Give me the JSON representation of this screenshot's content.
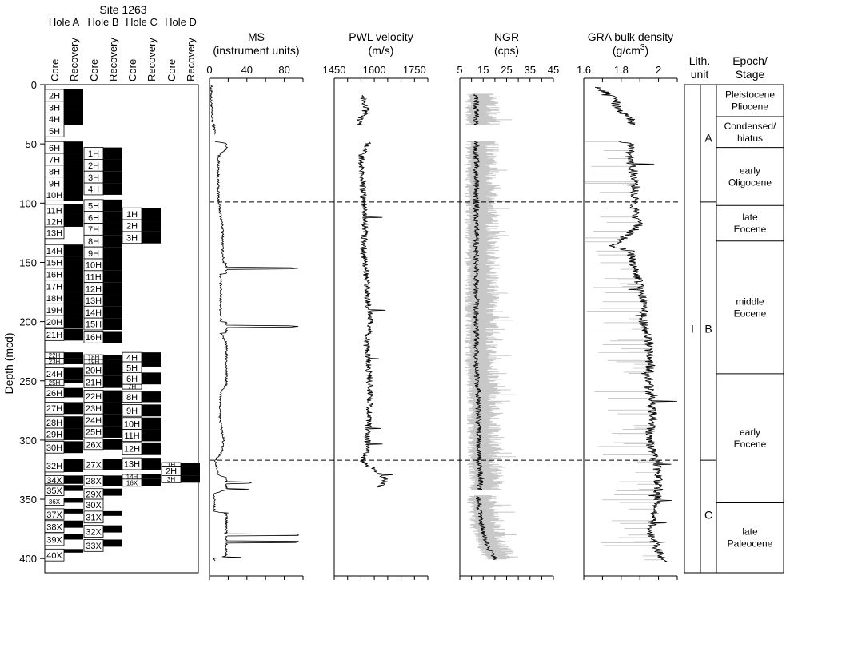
{
  "title": "Site 1263",
  "depth_axis": {
    "label": "Depth (mcd)",
    "ticks": [
      0,
      50,
      100,
      150,
      200,
      250,
      300,
      350,
      400
    ],
    "range": [
      0,
      412
    ]
  },
  "holes": [
    {
      "name": "Hole A",
      "cores": [
        {
          "id": "2H",
          "top": 4,
          "bot": 14,
          "rec": 10
        },
        {
          "id": "3H",
          "top": 14,
          "bot": 24,
          "rec": 10
        },
        {
          "id": "4H",
          "top": 24,
          "bot": 34,
          "rec": 10
        },
        {
          "id": "5H",
          "top": 34,
          "bot": 44,
          "rec": 0
        },
        {
          "id": "6H",
          "top": 48,
          "bot": 58,
          "rec": 10
        },
        {
          "id": "7H",
          "top": 58,
          "bot": 68,
          "rec": 10
        },
        {
          "id": "8H",
          "top": 68,
          "bot": 78,
          "rec": 10
        },
        {
          "id": "9H",
          "top": 78,
          "bot": 88,
          "rec": 10
        },
        {
          "id": "10H",
          "top": 88,
          "bot": 98,
          "rec": 10
        },
        {
          "id": "11H",
          "top": 101,
          "bot": 111,
          "rec": 10
        },
        {
          "id": "12H",
          "top": 111,
          "bot": 120,
          "rec": 9
        },
        {
          "id": "13H",
          "top": 120,
          "bot": 130,
          "rec": 0
        },
        {
          "id": "14H",
          "top": 135,
          "bot": 145,
          "rec": 10
        },
        {
          "id": "15H",
          "top": 145,
          "bot": 155,
          "rec": 10
        },
        {
          "id": "16H",
          "top": 155,
          "bot": 165,
          "rec": 10
        },
        {
          "id": "17H",
          "top": 165,
          "bot": 175,
          "rec": 10
        },
        {
          "id": "18H",
          "top": 175,
          "bot": 185,
          "rec": 10
        },
        {
          "id": "19H",
          "top": 185,
          "bot": 195,
          "rec": 10
        },
        {
          "id": "20H",
          "top": 195,
          "bot": 205,
          "rec": 10
        },
        {
          "id": "21H",
          "top": 206,
          "bot": 216,
          "rec": 10
        },
        {
          "id": "22H",
          "top": 226,
          "bot": 231,
          "rec": 5
        },
        {
          "id": "23H",
          "top": 231,
          "bot": 236,
          "rec": 5
        },
        {
          "id": "24H",
          "top": 239,
          "bot": 249,
          "rec": 10
        },
        {
          "id": "25H",
          "top": 249,
          "bot": 254,
          "rec": 3
        },
        {
          "id": "26H",
          "top": 256,
          "bot": 264,
          "rec": 8
        },
        {
          "id": "27H",
          "top": 268,
          "bot": 278,
          "rec": 10
        },
        {
          "id": "28H",
          "top": 280,
          "bot": 290,
          "rec": 10
        },
        {
          "id": "29H",
          "top": 290,
          "bot": 300,
          "rec": 10
        },
        {
          "id": "30H",
          "top": 301,
          "bot": 311,
          "rec": 10
        },
        {
          "id": "32H",
          "top": 316,
          "bot": 327,
          "rec": 11
        },
        {
          "id": "34X",
          "top": 330,
          "bot": 337,
          "rec": 7
        },
        {
          "id": "35X",
          "top": 338,
          "bot": 347,
          "rec": 5
        },
        {
          "id": "36X",
          "top": 349,
          "bot": 355,
          "rec": 4
        },
        {
          "id": "37X",
          "top": 358,
          "bot": 367,
          "rec": 4
        },
        {
          "id": "38X",
          "top": 368,
          "bot": 378,
          "rec": 6
        },
        {
          "id": "39X",
          "top": 379,
          "bot": 389,
          "rec": 5
        },
        {
          "id": "40X",
          "top": 392,
          "bot": 402,
          "rec": 3
        }
      ]
    },
    {
      "name": "Hole B",
      "cores": [
        {
          "id": "1H",
          "top": 53,
          "bot": 63,
          "rec": 10
        },
        {
          "id": "2H",
          "top": 63,
          "bot": 73,
          "rec": 10
        },
        {
          "id": "3H",
          "top": 73,
          "bot": 83,
          "rec": 10
        },
        {
          "id": "4H",
          "top": 83,
          "bot": 93,
          "rec": 10
        },
        {
          "id": "5H",
          "top": 97,
          "bot": 107,
          "rec": 10
        },
        {
          "id": "6H",
          "top": 107,
          "bot": 117,
          "rec": 10
        },
        {
          "id": "7H",
          "top": 117,
          "bot": 127,
          "rec": 10
        },
        {
          "id": "8H",
          "top": 127,
          "bot": 137,
          "rec": 10
        },
        {
          "id": "9H",
          "top": 137,
          "bot": 147,
          "rec": 10
        },
        {
          "id": "10H",
          "top": 147,
          "bot": 157,
          "rec": 10
        },
        {
          "id": "11H",
          "top": 157,
          "bot": 167,
          "rec": 10
        },
        {
          "id": "12H",
          "top": 167,
          "bot": 177,
          "rec": 10
        },
        {
          "id": "13H",
          "top": 177,
          "bot": 187,
          "rec": 10
        },
        {
          "id": "14H",
          "top": 187,
          "bot": 197,
          "rec": 10
        },
        {
          "id": "15H",
          "top": 197,
          "bot": 207,
          "rec": 10
        },
        {
          "id": "16H",
          "top": 208,
          "bot": 218,
          "rec": 10
        },
        {
          "id": "18H",
          "top": 228,
          "bot": 232,
          "rec": 4
        },
        {
          "id": "19H",
          "top": 232,
          "bot": 236,
          "rec": 4
        },
        {
          "id": "20H",
          "top": 236,
          "bot": 246,
          "rec": 10
        },
        {
          "id": "21H",
          "top": 246,
          "bot": 256,
          "rec": 10
        },
        {
          "id": "22H",
          "top": 258,
          "bot": 268,
          "rec": 10
        },
        {
          "id": "23H",
          "top": 268,
          "bot": 278,
          "rec": 10
        },
        {
          "id": "24H",
          "top": 278,
          "bot": 288,
          "rec": 10
        },
        {
          "id": "25H",
          "top": 288,
          "bot": 298,
          "rec": 10
        },
        {
          "id": "26X",
          "top": 299,
          "bot": 308,
          "rec": 9
        },
        {
          "id": "27X",
          "top": 316,
          "bot": 325,
          "rec": 9
        },
        {
          "id": "28X",
          "top": 330,
          "bot": 339,
          "rec": 9
        },
        {
          "id": "29X",
          "top": 341,
          "bot": 350,
          "rec": 6
        },
        {
          "id": "30X",
          "top": 350,
          "bot": 359,
          "rec": 0
        },
        {
          "id": "31X",
          "top": 360,
          "bot": 370,
          "rec": 4
        },
        {
          "id": "32X",
          "top": 372,
          "bot": 382,
          "rec": 6
        },
        {
          "id": "33X",
          "top": 384,
          "bot": 394,
          "rec": 6
        }
      ]
    },
    {
      "name": "Hole C",
      "cores": [
        {
          "id": "1H",
          "top": 104,
          "bot": 114,
          "rec": 10
        },
        {
          "id": "2H",
          "top": 114,
          "bot": 124,
          "rec": 10
        },
        {
          "id": "3H",
          "top": 124,
          "bot": 134,
          "rec": 10
        },
        {
          "id": "4H",
          "top": 226,
          "bot": 234,
          "rec": 8
        },
        {
          "id": "5H",
          "top": 234,
          "bot": 244,
          "rec": 4
        },
        {
          "id": "6H",
          "top": 243,
          "bot": 253,
          "rec": 10
        },
        {
          "id": "7H",
          "top": 253,
          "bot": 257,
          "rec": 0
        },
        {
          "id": "8H",
          "top": 259,
          "bot": 268,
          "rec": 9
        },
        {
          "id": "9H",
          "top": 270,
          "bot": 280,
          "rec": 10
        },
        {
          "id": "10H",
          "top": 281,
          "bot": 291,
          "rec": 10
        },
        {
          "id": "11H",
          "top": 291,
          "bot": 301,
          "rec": 10
        },
        {
          "id": "12H",
          "top": 302,
          "bot": 312,
          "rec": 10
        },
        {
          "id": "13H",
          "top": 315,
          "bot": 325,
          "rec": 10
        },
        {
          "id": "14H",
          "top": 329,
          "bot": 333,
          "rec": 4
        },
        {
          "id": "16X",
          "top": 333,
          "bot": 339,
          "rec": 6
        }
      ]
    },
    {
      "name": "Hole D",
      "cores": [
        {
          "id": "1H",
          "top": 319,
          "bot": 322,
          "rec": 3
        },
        {
          "id": "2H",
          "top": 322,
          "bot": 330,
          "rec": 8
        },
        {
          "id": "3H",
          "top": 330,
          "bot": 336,
          "rec": 6
        }
      ]
    }
  ],
  "core_col_labels": [
    "Core",
    "Recovery"
  ],
  "tracks": [
    {
      "key": "ms",
      "title": "MS",
      "subtitle": "(instrument units)",
      "range": [
        0,
        100
      ],
      "tick_labels": [
        0,
        40,
        80
      ],
      "minor_ticks": [
        0,
        20,
        40,
        60,
        80,
        100
      ]
    },
    {
      "key": "pwl",
      "title": "PWL velocity",
      "subtitle": "(m/s)",
      "range": [
        1450,
        1800
      ],
      "tick_labels": [
        1450,
        1600,
        1750
      ],
      "minor_ticks": [
        1450,
        1500,
        1550,
        1600,
        1650,
        1700,
        1750,
        1800
      ]
    },
    {
      "key": "ngr",
      "title": "NGR",
      "subtitle": "(cps)",
      "range": [
        5,
        45
      ],
      "tick_labels": [
        5,
        15,
        25,
        35,
        45
      ],
      "minor_ticks": [
        5,
        10,
        15,
        20,
        25,
        30,
        35,
        40,
        45
      ]
    },
    {
      "key": "gra",
      "title": "GRA bulk density",
      "subtitle": "(g/cm",
      "subtitle_sup": "3",
      "subtitle_end": ")",
      "range": [
        1.6,
        2.1
      ],
      "tick_labels": [
        "1.6",
        "1.8",
        "2"
      ],
      "minor_ticks": [
        1.6,
        1.7,
        1.8,
        1.9,
        2.0,
        2.1
      ]
    }
  ],
  "chart_data": {
    "type": "line",
    "x_axis": "depth (mcd)",
    "series": [
      {
        "name": "MS",
        "units": "instrument units",
        "depth": [
          0,
          10,
          20,
          30,
          40,
          48,
          50,
          60,
          80,
          100,
          120,
          140,
          150,
          155,
          160,
          180,
          200,
          204,
          210,
          230,
          240,
          245,
          260,
          280,
          300,
          310,
          318,
          322,
          330,
          336,
          345,
          360,
          380,
          386,
          400
        ],
        "values": [
          2,
          2,
          2,
          3,
          6,
          5,
          25,
          10,
          9,
          10,
          14,
          14,
          15,
          95,
          12,
          12,
          12,
          95,
          12,
          28,
          30,
          25,
          12,
          11,
          15,
          13,
          6,
          8,
          10,
          45,
          5,
          5,
          95,
          95,
          5
        ]
      },
      {
        "name": "PWL velocity",
        "units": "m/s",
        "depth": [
          10,
          15,
          20,
          25,
          30,
          34,
          48,
          50,
          60,
          80,
          100,
          120,
          140,
          160,
          180,
          200,
          220,
          240,
          260,
          280,
          300,
          310,
          318,
          325,
          333,
          340
        ],
        "values": [
          1555,
          1565,
          1570,
          1560,
          1545,
          1550,
          1570,
          1575,
          1550,
          1555,
          1560,
          1565,
          1560,
          1570,
          1575,
          1585,
          1570,
          1580,
          1585,
          1580,
          1575,
          1570,
          1555,
          1600,
          1640,
          1620
        ]
      },
      {
        "name": "NGR",
        "units": "cps",
        "depth": [
          10,
          20,
          30,
          40,
          48,
          60,
          80,
          100,
          120,
          140,
          160,
          180,
          200,
          220,
          240,
          260,
          280,
          300,
          320,
          333,
          350,
          370,
          390,
          400
        ],
        "values": [
          12,
          12,
          12,
          12,
          12,
          12,
          12,
          12,
          12,
          12,
          12,
          12,
          12,
          12,
          12,
          13,
          13,
          13,
          13,
          14,
          13,
          14,
          17,
          20
        ]
      },
      {
        "name": "GRA bulk density",
        "units": "g/cm3",
        "depth": [
          0,
          5,
          10,
          20,
          30,
          40,
          48,
          50,
          60,
          80,
          100,
          120,
          137,
          140,
          160,
          180,
          200,
          220,
          240,
          260,
          280,
          300,
          320,
          340,
          360,
          380,
          400
        ],
        "values": [
          1.66,
          1.7,
          1.76,
          1.78,
          1.86,
          1.83,
          1.8,
          1.86,
          1.84,
          1.88,
          1.87,
          1.89,
          1.75,
          1.85,
          1.88,
          1.92,
          1.92,
          1.95,
          1.95,
          1.95,
          1.97,
          1.95,
          1.99,
          2.0,
          1.98,
          1.96,
          2.02
        ]
      }
    ],
    "dashed_boundaries": [
      99,
      317
    ]
  },
  "lithology": {
    "header": [
      "Lith.",
      "unit"
    ],
    "unit_I": "I",
    "subunits": [
      {
        "label": "A",
        "top": 0,
        "bot": 99
      },
      {
        "label": "B",
        "top": 99,
        "bot": 317
      },
      {
        "label": "C",
        "top": 317,
        "bot": 412
      }
    ]
  },
  "epochs": {
    "header": [
      "Epoch/",
      "Stage"
    ],
    "intervals": [
      {
        "lines": [
          "Pleistocene",
          "Pliocene"
        ],
        "top": 0,
        "bot": 27
      },
      {
        "lines": [
          "Condensed/",
          "hiatus"
        ],
        "top": 27,
        "bot": 53
      },
      {
        "lines": [
          "early",
          "Oligocene"
        ],
        "top": 53,
        "bot": 102
      },
      {
        "lines": [
          "late",
          "Eocene"
        ],
        "top": 102,
        "bot": 132
      },
      {
        "lines": [
          "middle",
          "Eocene"
        ],
        "top": 132,
        "bot": 244
      },
      {
        "lines": [
          "early",
          "Eocene"
        ],
        "top": 244,
        "bot": 353
      },
      {
        "lines": [
          "late",
          "Paleocene"
        ],
        "top": 353,
        "bot": 412
      }
    ]
  }
}
